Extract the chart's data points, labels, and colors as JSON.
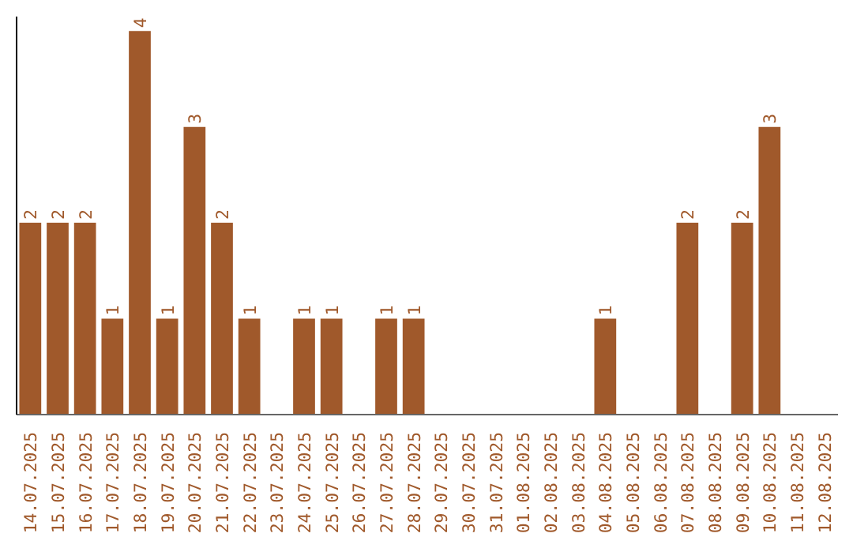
{
  "chart_data": {
    "type": "bar",
    "categories": [
      "14.07.2025",
      "15.07.2025",
      "16.07.2025",
      "17.07.2025",
      "18.07.2025",
      "19.07.2025",
      "20.07.2025",
      "21.07.2025",
      "22.07.2025",
      "23.07.2025",
      "24.07.2025",
      "25.07.2025",
      "26.07.2025",
      "27.07.2025",
      "28.07.2025",
      "29.07.2025",
      "30.07.2025",
      "31.07.2025",
      "01.08.2025",
      "02.08.2025",
      "03.08.2025",
      "04.08.2025",
      "05.08.2025",
      "06.08.2025",
      "07.08.2025",
      "08.08.2025",
      "09.08.2025",
      "10.08.2025",
      "11.08.2025",
      "12.08.2025"
    ],
    "values": [
      2,
      2,
      2,
      1,
      4,
      1,
      3,
      2,
      1,
      0,
      1,
      1,
      0,
      1,
      1,
      0,
      0,
      0,
      0,
      0,
      0,
      1,
      0,
      0,
      2,
      0,
      2,
      3,
      0,
      0
    ],
    "value_labels": [
      "2",
      "2",
      "2",
      "1",
      "4",
      "1",
      "3",
      "2",
      "1",
      null,
      "1",
      "1",
      null,
      "1",
      "1",
      null,
      null,
      null,
      null,
      null,
      null,
      "1",
      null,
      null,
      "2",
      null,
      "2",
      "3",
      null,
      null
    ],
    "color": "#a0592b",
    "ylim": [
      0,
      4.15
    ],
    "tick_labels": "x",
    "grid": false
  }
}
